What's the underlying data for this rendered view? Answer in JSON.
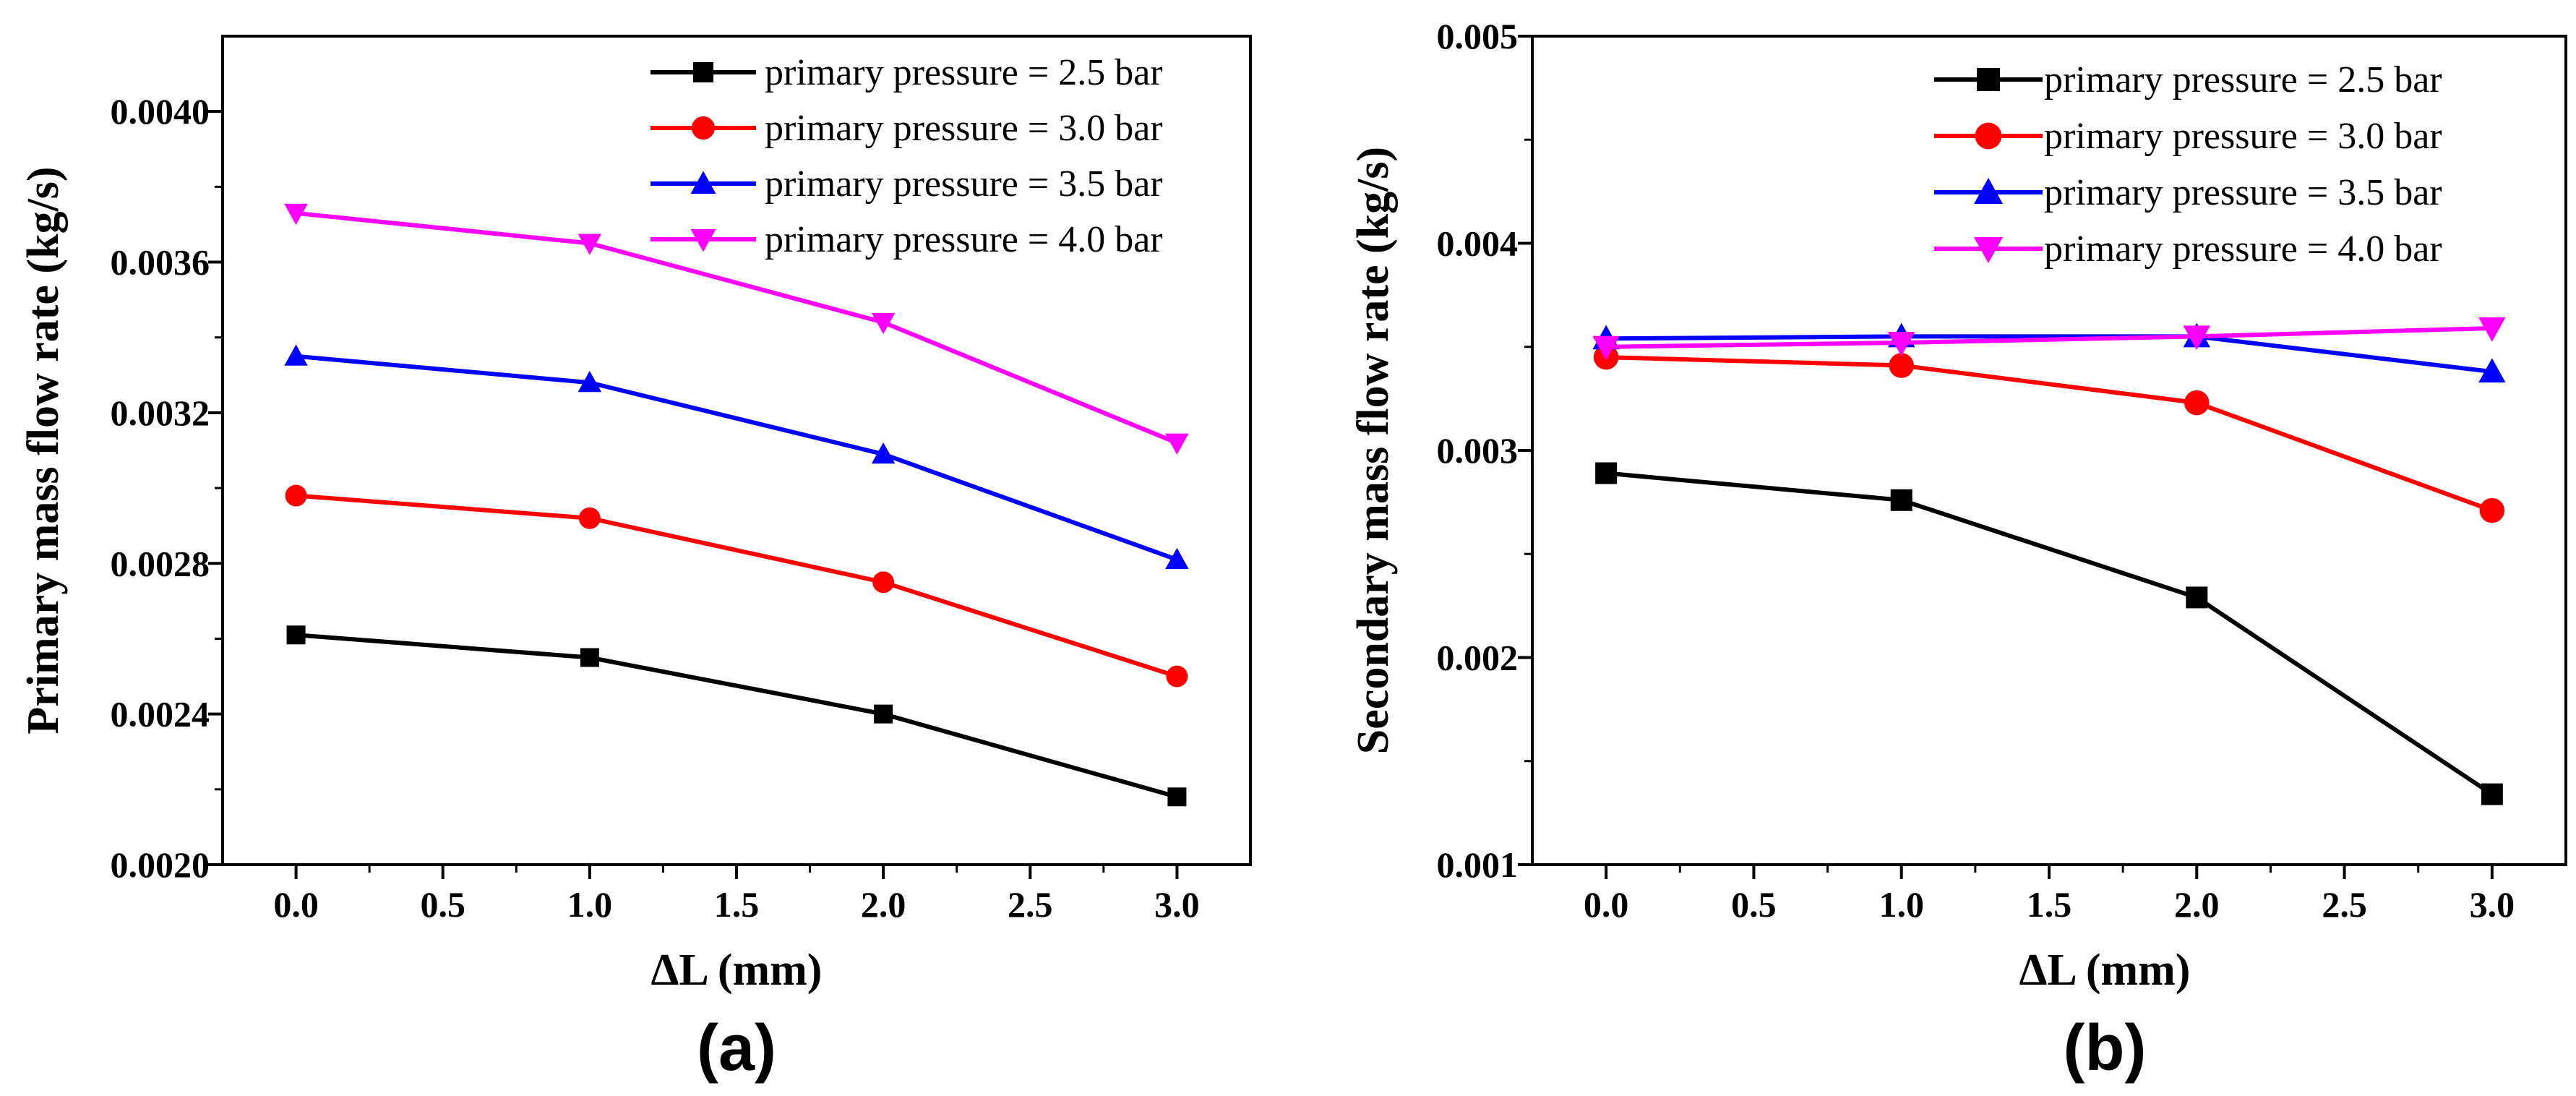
{
  "chart_data": [
    {
      "type": "line",
      "panel_label": "(a)",
      "xlabel": "ΔL (mm)",
      "ylabel": "Primary mass flow rate (kg/s)",
      "xlim": [
        -0.25,
        3.25
      ],
      "ylim": [
        0.002,
        0.0042
      ],
      "xticks": [
        0.0,
        0.5,
        1.0,
        1.5,
        2.0,
        2.5,
        3.0
      ],
      "xtick_labels": [
        "0.0",
        "0.5",
        "1.0",
        "1.5",
        "2.0",
        "2.5",
        "3.0"
      ],
      "yticks": [
        0.002,
        0.0024,
        0.0028,
        0.0032,
        0.0036,
        0.004
      ],
      "ytick_labels": [
        "0.0020",
        "0.0024",
        "0.0028",
        "0.0032",
        "0.0036",
        "0.0040"
      ],
      "legend_position": "top-right",
      "x": [
        0.0,
        1.0,
        2.0,
        3.0
      ],
      "series": [
        {
          "name": "primary pressure = 2.5 bar",
          "color": "#000000",
          "marker": "square",
          "values": [
            0.00261,
            0.00255,
            0.0024,
            0.00218
          ]
        },
        {
          "name": "primary pressure = 3.0 bar",
          "color": "#ff0000",
          "marker": "circle",
          "values": [
            0.00298,
            0.00292,
            0.00275,
            0.0025
          ]
        },
        {
          "name": "primary pressure = 3.5 bar",
          "color": "#0000ff",
          "marker": "triangle-up",
          "values": [
            0.00335,
            0.00328,
            0.00309,
            0.00281
          ]
        },
        {
          "name": "primary pressure = 4.0 bar",
          "color": "#ff00ff",
          "marker": "triangle-down",
          "values": [
            0.00373,
            0.00365,
            0.00344,
            0.00312
          ]
        }
      ]
    },
    {
      "type": "line",
      "panel_label": "(b)",
      "xlabel": "ΔL (mm)",
      "ylabel": "Secondary mass flow rate (kg/s)",
      "xlim": [
        -0.25,
        3.25
      ],
      "ylim": [
        0.001,
        0.005
      ],
      "xticks": [
        0.0,
        0.5,
        1.0,
        1.5,
        2.0,
        2.5,
        3.0
      ],
      "xtick_labels": [
        "0.0",
        "0.5",
        "1.0",
        "1.5",
        "2.0",
        "2.5",
        "3.0"
      ],
      "yticks": [
        0.001,
        0.002,
        0.003,
        0.004,
        0.005
      ],
      "ytick_labels": [
        "0.001",
        "0.002",
        "0.003",
        "0.004",
        "0.005"
      ],
      "legend_position": "top-right",
      "x": [
        0.0,
        1.0,
        2.0,
        3.0
      ],
      "series": [
        {
          "name": "primary pressure = 2.5 bar",
          "color": "#000000",
          "marker": "square",
          "values": [
            0.00289,
            0.00276,
            0.00229,
            0.00134
          ]
        },
        {
          "name": "primary pressure = 3.0 bar",
          "color": "#ff0000",
          "marker": "circle",
          "values": [
            0.00345,
            0.00341,
            0.00323,
            0.00271
          ]
        },
        {
          "name": "primary pressure = 3.5 bar",
          "color": "#0000ff",
          "marker": "triangle-up",
          "values": [
            0.00354,
            0.00355,
            0.00355,
            0.00338
          ]
        },
        {
          "name": "primary pressure = 4.0 bar",
          "color": "#ff00ff",
          "marker": "triangle-down",
          "values": [
            0.0035,
            0.00352,
            0.00355,
            0.00359
          ]
        }
      ]
    }
  ]
}
